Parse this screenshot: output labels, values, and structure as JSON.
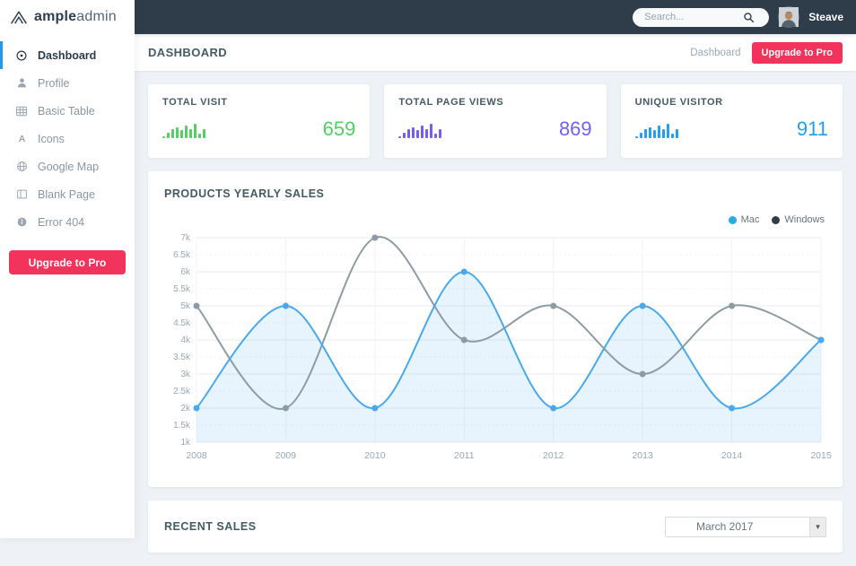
{
  "brand": {
    "bold": "ample",
    "light": "admin"
  },
  "topbar": {
    "search_placeholder": "Search...",
    "user_name": "Steave"
  },
  "sidebar": {
    "items": [
      {
        "label": "Dashboard",
        "icon": "disc-icon",
        "active": true
      },
      {
        "label": "Profile",
        "icon": "user-icon",
        "active": false
      },
      {
        "label": "Basic Table",
        "icon": "table-icon",
        "active": false
      },
      {
        "label": "Icons",
        "icon": "letter-a-icon",
        "active": false
      },
      {
        "label": "Google Map",
        "icon": "globe-icon",
        "active": false
      },
      {
        "label": "Blank Page",
        "icon": "page-icon",
        "active": false
      },
      {
        "label": "Error 404",
        "icon": "info-icon",
        "active": false
      }
    ],
    "upgrade_label": "Upgrade to Pro"
  },
  "page_header": {
    "title": "DASHBOARD",
    "breadcrumb": "Dashboard",
    "upgrade_label": "Upgrade to Pro"
  },
  "stat_cards": [
    {
      "title": "TOTAL VISIT",
      "value": "659",
      "color": "#55ce63",
      "spark": [
        2,
        6,
        10,
        12,
        9,
        14,
        10,
        16,
        5,
        10
      ]
    },
    {
      "title": "TOTAL PAGE VIEWS",
      "value": "869",
      "color": "#7460ee",
      "spark": [
        2,
        6,
        10,
        12,
        9,
        14,
        10,
        16,
        5,
        10
      ]
    },
    {
      "title": "UNIQUE VISITOR",
      "value": "911",
      "color": "#239ff0",
      "spark": [
        2,
        6,
        10,
        12,
        9,
        14,
        10,
        16,
        5,
        10
      ]
    }
  ],
  "chart_data": {
    "type": "line",
    "title": "PRODUCTS YEARLY SALES",
    "x": [
      "2008",
      "2009",
      "2010",
      "2011",
      "2012",
      "2013",
      "2014",
      "2015"
    ],
    "series": [
      {
        "name": "Mac",
        "color": "#49a9ee",
        "legend_dot": "#2cabe3",
        "area": true,
        "values": [
          2000,
          5000,
          2000,
          6000,
          2000,
          5000,
          2000,
          4000
        ]
      },
      {
        "name": "Windows",
        "color": "#8d9ba3",
        "legend_dot": "#2f3d4a",
        "area": false,
        "values": [
          5000,
          2000,
          7000,
          4000,
          5000,
          3000,
          5000,
          4000
        ]
      }
    ],
    "xlabel": "",
    "ylabel": "",
    "ylim": [
      1000,
      7000
    ],
    "ytick_step": 500,
    "ytick_format": "k",
    "grid": true,
    "legend_position": "top-right"
  },
  "recent_sales": {
    "title": "RECENT SALES",
    "period_selected": "March 2017"
  },
  "colors": {
    "navbar": "#2f3d4a",
    "accent_pink": "#f2335b",
    "active_item_bar": "#2196f3",
    "content_bg": "#eef2f6",
    "mac_area_fill": "rgba(73,169,238,0.13)",
    "grid_line": "#e8ebee",
    "grid_line_minor": "#f0f3f5",
    "axis_text": "#9aa7b0"
  }
}
